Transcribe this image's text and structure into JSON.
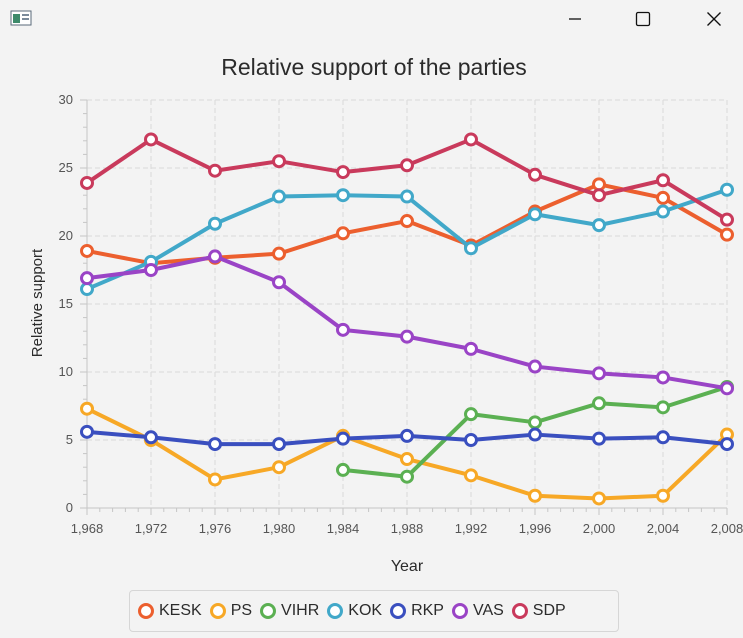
{
  "window": {
    "icon": "java-app-icon",
    "buttons": [
      "minimize-icon",
      "maximize-icon",
      "close-icon"
    ]
  },
  "chart_data": {
    "type": "line",
    "title": "Relative support of the parties",
    "xlabel": "Year",
    "ylabel": "Relative support",
    "xlim": [
      1968,
      2008
    ],
    "ylim": [
      0,
      30
    ],
    "x_ticks": [
      1968,
      1972,
      1976,
      1980,
      1984,
      1988,
      1992,
      1996,
      2000,
      2004,
      2008
    ],
    "x_tick_labels": [
      "1,968",
      "1,972",
      "1,976",
      "1,980",
      "1,984",
      "1,988",
      "1,992",
      "1,996",
      "2,000",
      "2,004",
      "2,008"
    ],
    "y_ticks": [
      0,
      5,
      10,
      15,
      20,
      25,
      30
    ],
    "y_tick_labels": [
      "0",
      "5",
      "10",
      "15",
      "20",
      "25",
      "30"
    ],
    "grid": true,
    "legend_position": "bottom",
    "series": [
      {
        "name": "KESK",
        "color": "#ec5f2e",
        "x": [
          1968,
          1972,
          1976,
          1980,
          1984,
          1988,
          1992,
          1996,
          2000,
          2004,
          2008
        ],
        "values": [
          18.9,
          18.0,
          18.4,
          18.7,
          20.2,
          21.1,
          19.3,
          21.8,
          23.8,
          22.8,
          20.1
        ]
      },
      {
        "name": "PS",
        "color": "#f7a826",
        "x": [
          1968,
          1972,
          1976,
          1980,
          1984,
          1988,
          1992,
          1996,
          2000,
          2004,
          2008
        ],
        "values": [
          7.3,
          5.0,
          2.1,
          3.0,
          5.3,
          3.6,
          2.4,
          0.9,
          0.7,
          0.9,
          5.4
        ]
      },
      {
        "name": "VIHR",
        "color": "#5bb052",
        "x": [
          1984,
          1988,
          1992,
          1996,
          2000,
          2004,
          2008
        ],
        "values": [
          2.8,
          2.3,
          6.9,
          6.3,
          7.7,
          7.4,
          8.9
        ]
      },
      {
        "name": "KOK",
        "color": "#41a8c9",
        "x": [
          1968,
          1972,
          1976,
          1980,
          1984,
          1988,
          1992,
          1996,
          2000,
          2004,
          2008
        ],
        "values": [
          16.1,
          18.1,
          20.9,
          22.9,
          23.0,
          22.9,
          19.1,
          21.6,
          20.8,
          21.8,
          23.4
        ]
      },
      {
        "name": "RKP",
        "color": "#3a4fbf",
        "x": [
          1968,
          1972,
          1976,
          1980,
          1984,
          1988,
          1992,
          1996,
          2000,
          2004,
          2008
        ],
        "values": [
          5.6,
          5.2,
          4.7,
          4.7,
          5.1,
          5.3,
          5.0,
          5.4,
          5.1,
          5.2,
          4.7
        ]
      },
      {
        "name": "VAS",
        "color": "#9a44c6",
        "x": [
          1968,
          1972,
          1976,
          1980,
          1984,
          1988,
          1992,
          1996,
          2000,
          2004,
          2008
        ],
        "values": [
          16.9,
          17.5,
          18.5,
          16.6,
          13.1,
          12.6,
          11.7,
          10.4,
          9.9,
          9.6,
          8.8
        ]
      },
      {
        "name": "SDP",
        "color": "#c93a5c",
        "x": [
          1968,
          1972,
          1976,
          1980,
          1984,
          1988,
          1992,
          1996,
          2000,
          2004,
          2008
        ],
        "values": [
          23.9,
          27.1,
          24.8,
          25.5,
          24.7,
          25.2,
          27.1,
          24.5,
          23.0,
          24.1,
          21.2
        ]
      }
    ]
  }
}
